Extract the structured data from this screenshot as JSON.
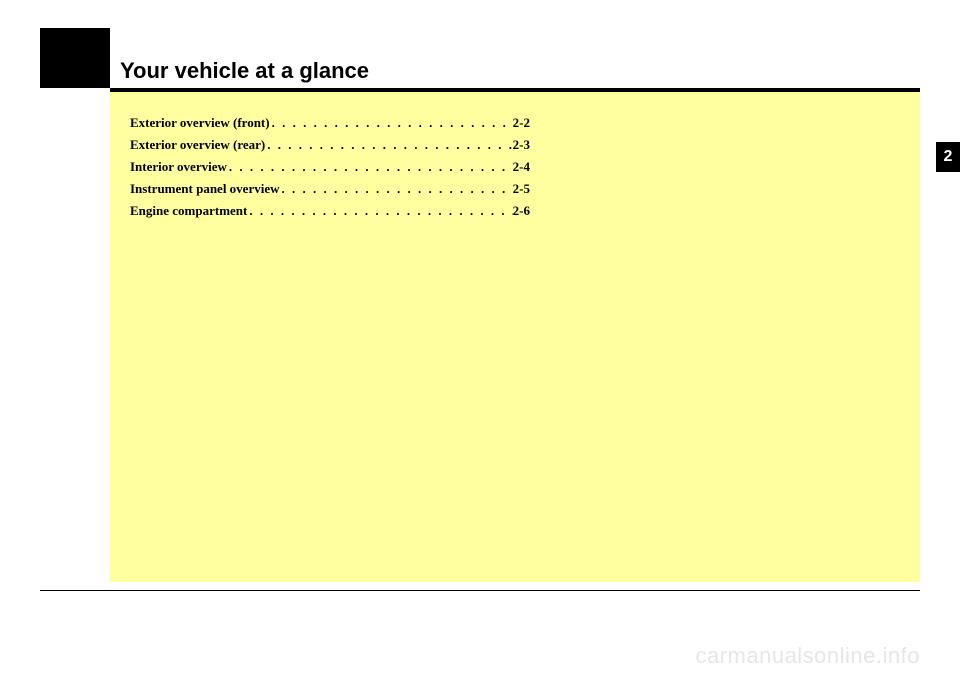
{
  "header": {
    "title": "Your vehicle at a glance"
  },
  "section_tab": "2",
  "toc": {
    "items": [
      {
        "label": "Exterior overview (front)",
        "page": "2-2"
      },
      {
        "label": "Exterior overview (rear)",
        "page": "2-3"
      },
      {
        "label": "Interior overview",
        "page": "2-4"
      },
      {
        "label": "Instrument panel overview",
        "page": "2-5"
      },
      {
        "label": "Engine compartment",
        "page": "2-6"
      }
    ]
  },
  "watermark": "carmanualsonline.info",
  "colors": {
    "panel_bg": "#ffffa0",
    "black": "#000000",
    "white": "#ffffff",
    "watermark": "#e6e6e6"
  }
}
